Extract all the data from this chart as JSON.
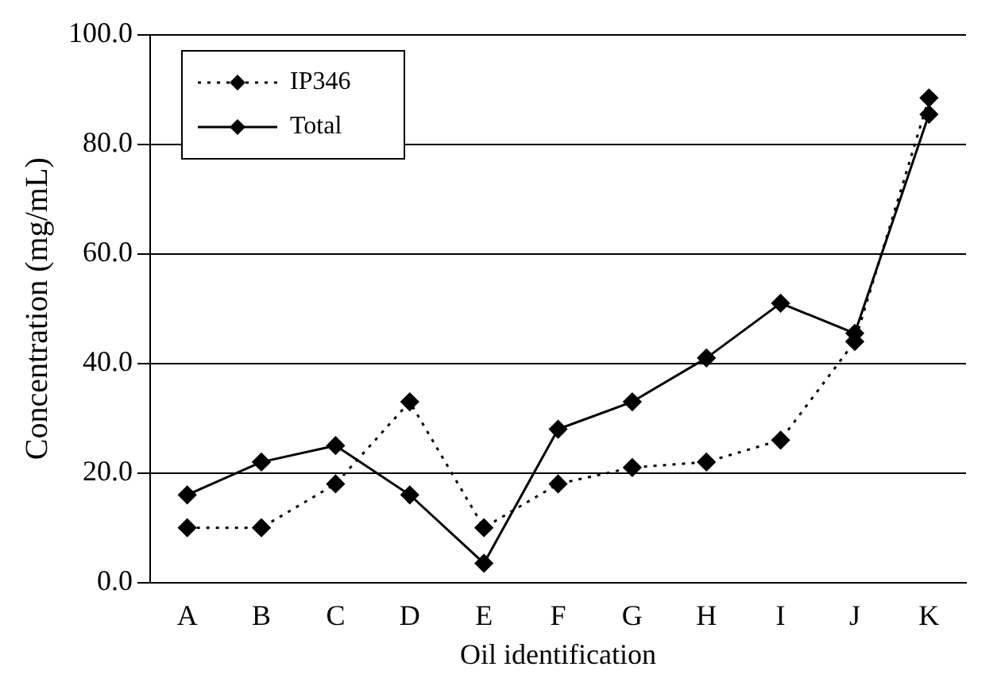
{
  "chart_data": {
    "type": "line",
    "xlabel": "Oil identification",
    "ylabel": "Concentration (mg/mL)",
    "categories": [
      "A",
      "B",
      "C",
      "D",
      "E",
      "F",
      "G",
      "H",
      "I",
      "J",
      "K"
    ],
    "series": [
      {
        "name": "IP346",
        "color": "#000000",
        "line_style": "dotted",
        "values": [
          10,
          10,
          18,
          33,
          10,
          18,
          21,
          22,
          26,
          44,
          88.5
        ]
      },
      {
        "name": "Total",
        "color": "#000000",
        "line_style": "solid",
        "values": [
          16,
          22,
          25,
          16,
          3.5,
          28,
          33,
          41,
          51,
          45.5,
          85.5
        ]
      }
    ],
    "ylim": [
      0,
      100
    ],
    "yticks": [
      {
        "value": 0,
        "label": "0.0"
      },
      {
        "value": 20,
        "label": "20.0"
      },
      {
        "value": 40,
        "label": "40.0"
      },
      {
        "value": 60,
        "label": "60.0"
      },
      {
        "value": 80,
        "label": "80.0"
      },
      {
        "value": 100,
        "label": "100.0"
      }
    ],
    "grid": "y",
    "legend": "top left",
    "marker": "diamond"
  }
}
